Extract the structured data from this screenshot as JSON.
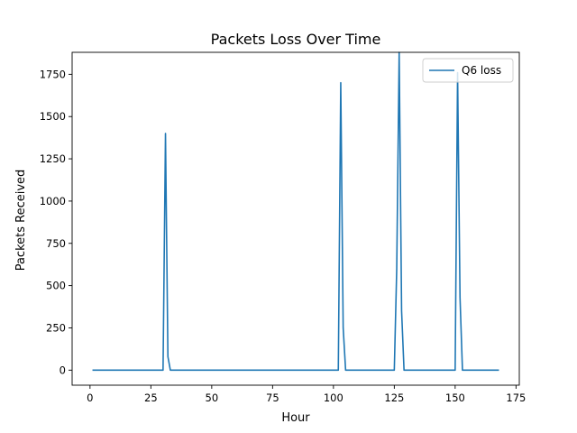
{
  "chart_data": {
    "type": "line",
    "title": "Packets Loss Over Time",
    "xlabel": "Hour",
    "ylabel": "Packets Received",
    "xlim": [
      -7.35,
      176.35
    ],
    "ylim": [
      -89,
      1880
    ],
    "xticks": [
      0,
      25,
      50,
      75,
      100,
      125,
      150,
      175
    ],
    "yticks": [
      0,
      250,
      500,
      750,
      1000,
      1250,
      1500,
      1750
    ],
    "grid": false,
    "legend_position": "top-right",
    "series": [
      {
        "name": "Q6 loss",
        "color": "#1f77b4",
        "x": [
          1,
          30,
          31,
          32,
          33,
          102,
          103,
          104,
          105,
          125,
          126,
          127,
          128,
          129,
          150,
          151,
          152,
          153,
          168
        ],
        "y": [
          0,
          0,
          1400,
          80,
          0,
          0,
          1700,
          250,
          0,
          0,
          600,
          1880,
          350,
          0,
          0,
          1760,
          430,
          0,
          0
        ]
      }
    ]
  }
}
